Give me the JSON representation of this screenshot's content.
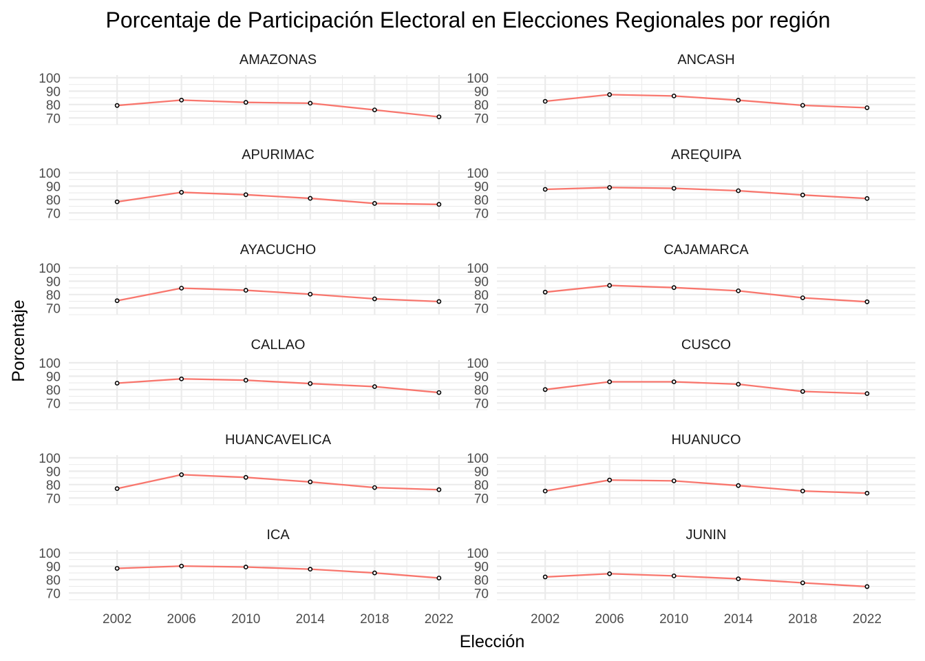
{
  "chart_data": {
    "type": "line",
    "title": "Porcentaje de Participación Electoral en Elecciones Regionales por región",
    "xlabel": "Elección",
    "ylabel": "Porcentaje",
    "x": [
      2002,
      2006,
      2010,
      2014,
      2018,
      2022
    ],
    "xlim": [
      1999,
      2025
    ],
    "ylim": [
      65,
      102
    ],
    "yticks": [
      70,
      80,
      90,
      100
    ],
    "xticks": [
      2002,
      2006,
      2010,
      2014,
      2018,
      2022
    ],
    "grid": true,
    "line_color": "#F8766D",
    "facets": [
      {
        "region": "AMAZONAS",
        "values": [
          79.3,
          83.3,
          81.6,
          81.0,
          76.0,
          70.8
        ]
      },
      {
        "region": "ANCASH",
        "values": [
          82.4,
          87.4,
          86.4,
          83.2,
          79.4,
          77.6
        ]
      },
      {
        "region": "APURIMAC",
        "values": [
          78.3,
          85.4,
          83.6,
          80.9,
          77.1,
          76.4
        ]
      },
      {
        "region": "AREQUIPA",
        "values": [
          87.6,
          89.0,
          88.4,
          86.6,
          83.4,
          80.8
        ]
      },
      {
        "region": "AYACUCHO",
        "values": [
          75.4,
          84.8,
          83.2,
          80.3,
          76.8,
          74.8
        ]
      },
      {
        "region": "CAJAMARCA",
        "values": [
          81.8,
          86.8,
          85.2,
          82.8,
          77.6,
          74.6
        ]
      },
      {
        "region": "CALLAO",
        "values": [
          84.8,
          88.0,
          87.0,
          84.5,
          82.2,
          77.8
        ]
      },
      {
        "region": "CUSCO",
        "values": [
          80.0,
          85.8,
          85.8,
          84.0,
          78.6,
          77.0
        ]
      },
      {
        "region": "HUANCAVELICA",
        "values": [
          77.0,
          87.4,
          85.4,
          82.0,
          77.8,
          76.2
        ]
      },
      {
        "region": "HUANUCO",
        "values": [
          75.2,
          83.4,
          82.8,
          79.3,
          75.2,
          73.6
        ]
      },
      {
        "region": "ICA",
        "values": [
          88.4,
          90.1,
          89.4,
          87.8,
          85.0,
          81.2
        ]
      },
      {
        "region": "JUNIN",
        "values": [
          82.0,
          84.4,
          82.8,
          80.6,
          77.6,
          74.8
        ]
      }
    ]
  }
}
